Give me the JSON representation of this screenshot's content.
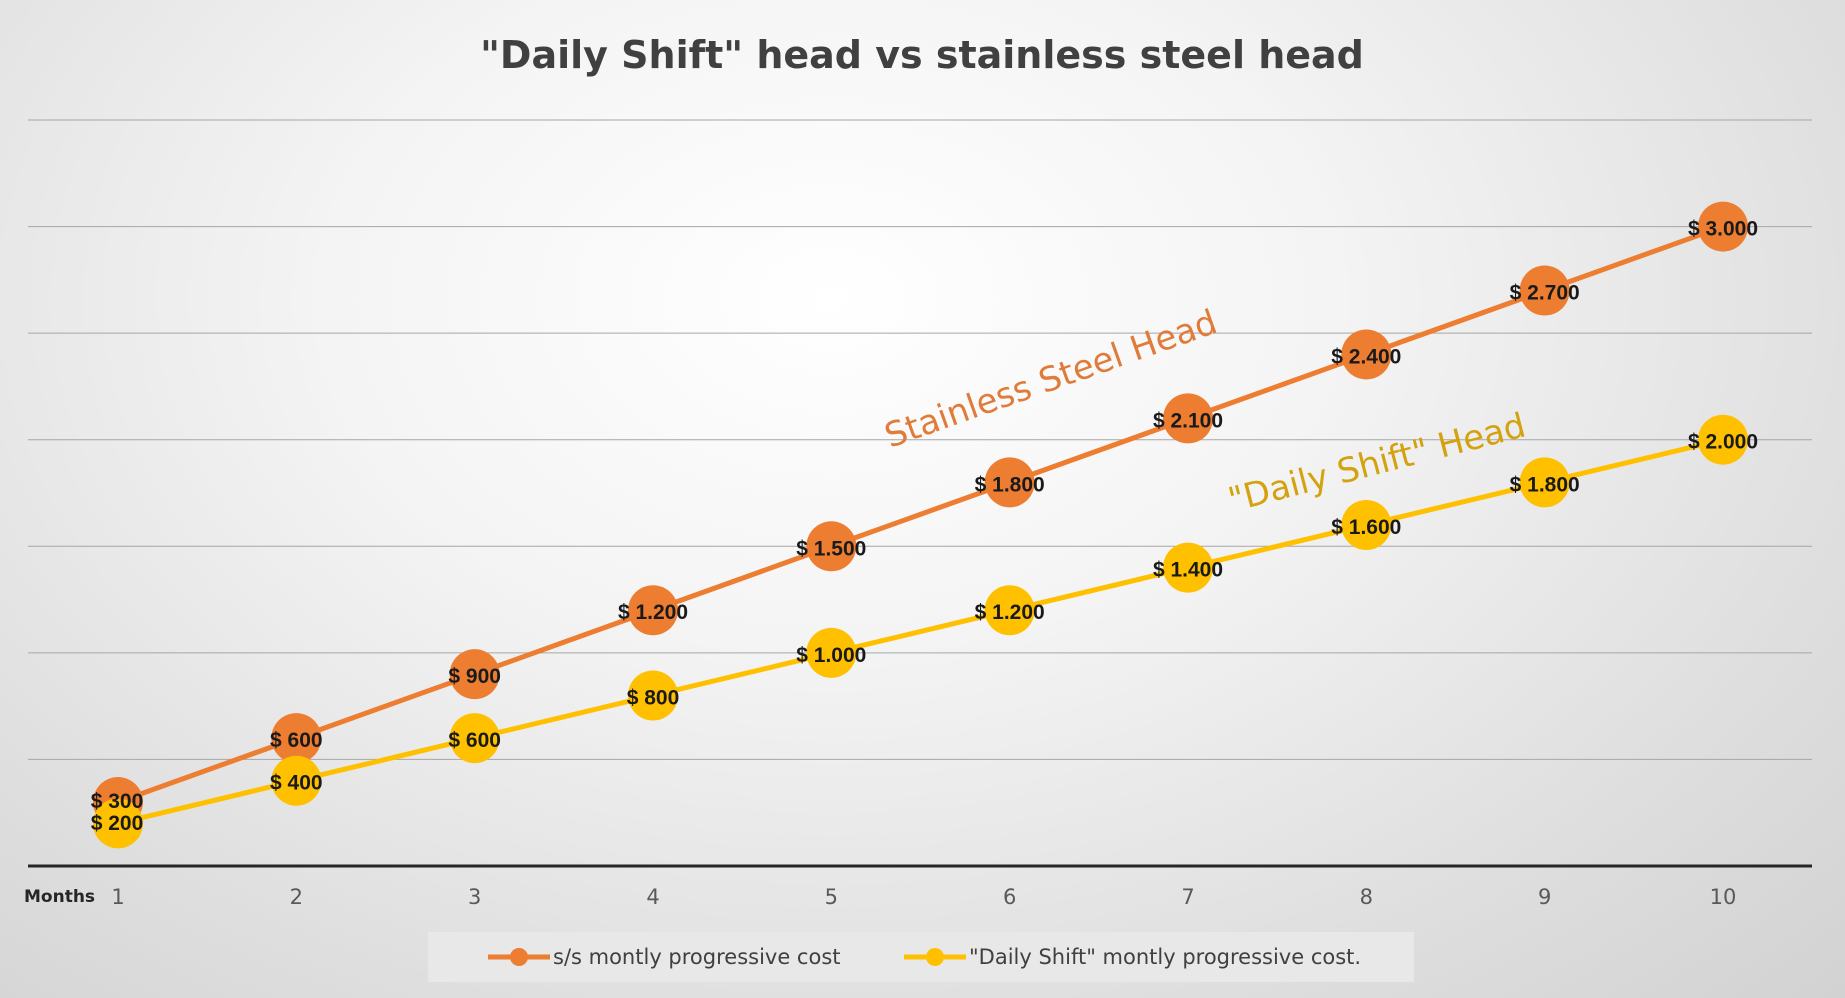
{
  "chart_data": {
    "type": "line",
    "title": "\"Daily Shift\" head vs stainless steel head",
    "xlabel": "Months",
    "ylabel": "",
    "x": [
      1,
      2,
      3,
      4,
      5,
      6,
      7,
      8,
      9,
      10
    ],
    "ylim": [
      0,
      3500
    ],
    "grid": true,
    "legend_position": "bottom",
    "series": [
      {
        "name": "s/s montly progressive cost",
        "color": "#ED7D31",
        "values": [
          300,
          600,
          900,
          1200,
          1500,
          1800,
          2100,
          2400,
          2700,
          3000
        ],
        "labels": [
          "$ 300",
          "$ 600",
          "$ 900",
          "$ 1.200",
          "$ 1.500",
          "$ 1.800",
          "$ 2.100",
          "$ 2.400",
          "$ 2.700",
          "$ 3.000"
        ]
      },
      {
        "name": "\"Daily Shift\" montly progressive cost.",
        "color": "#FFC000",
        "values": [
          200,
          400,
          600,
          800,
          1000,
          1200,
          1400,
          1600,
          1800,
          2000
        ],
        "labels": [
          "$ 200",
          "$ 400",
          "$ 600",
          "$ 800",
          "$ 1.000",
          "$ 1.200",
          "$ 1.400",
          "$ 1.600",
          "$ 1.800",
          "$ 2.000"
        ]
      }
    ],
    "annotations": [
      {
        "text": "Stainless Steel Head",
        "color": "#E07B39"
      },
      {
        "text": "\"Daily Shift\" Head",
        "color": "#D4A20F"
      }
    ]
  }
}
